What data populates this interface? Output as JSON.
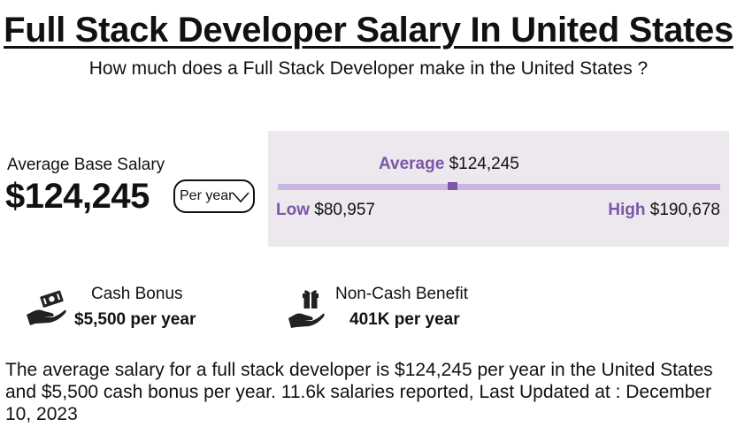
{
  "header": {
    "title": "Full Stack Developer Salary In United States",
    "subtitle": "How much does a Full Stack Developer make in the United States ?"
  },
  "base_salary": {
    "label": "Average Base Salary",
    "amount": "$124,245",
    "period_select": {
      "selected": "Per year",
      "icon": "chevron-down-icon"
    }
  },
  "range": {
    "average_label": "Average",
    "average_value": "$124,245",
    "low_label": "Low",
    "low_value": "$80,957",
    "high_label": "High",
    "high_value": "$190,678",
    "low_number": 80957,
    "average_number": 124245,
    "high_number": 190678,
    "accent_color": "#7b57a6",
    "bar_color": "#c9b6e4",
    "panel_color": "#ece8ee"
  },
  "benefits": [
    {
      "icon": "cash-in-hand-icon",
      "title": "Cash Bonus",
      "value": "$5,500 per year"
    },
    {
      "icon": "gift-in-hand-icon",
      "title": "Non-Cash Benefit",
      "value": "401K per year"
    }
  ],
  "summary": "The average salary for a full stack developer is $124,245 per year in the United States and $5,500 cash bonus per year. 11.6k salaries reported, Last Updated at : December 10, 2023"
}
